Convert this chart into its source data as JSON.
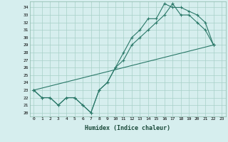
{
  "title": "",
  "xlabel": "Humidex (Indice chaleur)",
  "ylabel": "",
  "bg_color": "#d6eeee",
  "grid_color": "#a8d0c8",
  "line_color": "#2a7868",
  "xlim": [
    -0.5,
    23.5
  ],
  "ylim": [
    19.5,
    34.8
  ],
  "xticks": [
    0,
    1,
    2,
    3,
    4,
    5,
    6,
    7,
    8,
    9,
    10,
    11,
    12,
    13,
    14,
    15,
    16,
    17,
    18,
    19,
    20,
    21,
    22,
    23
  ],
  "yticks": [
    20,
    21,
    22,
    23,
    24,
    25,
    26,
    27,
    28,
    29,
    30,
    31,
    32,
    33,
    34
  ],
  "line1_x": [
    0,
    1,
    2,
    3,
    4,
    5,
    6,
    7,
    8,
    9,
    10,
    11,
    12,
    13,
    14,
    15,
    16,
    17,
    18,
    19,
    20,
    21,
    22
  ],
  "line1_y": [
    23,
    22,
    22,
    21,
    22,
    22,
    21,
    20,
    23,
    24,
    26,
    27,
    29,
    30,
    31,
    32,
    33,
    34.5,
    33,
    33,
    32,
    31,
    29
  ],
  "line2_x": [
    0,
    1,
    2,
    3,
    4,
    5,
    6,
    7,
    8,
    9,
    10,
    11,
    12,
    13,
    14,
    15,
    16,
    17,
    18,
    19,
    20,
    21,
    22
  ],
  "line2_y": [
    23,
    22,
    22,
    21,
    22,
    22,
    21,
    20,
    23,
    24,
    26,
    28,
    30,
    31,
    32.5,
    32.5,
    34.5,
    34,
    34,
    33.5,
    33,
    32,
    29
  ],
  "line3_x": [
    0,
    22
  ],
  "line3_y": [
    23,
    29
  ]
}
